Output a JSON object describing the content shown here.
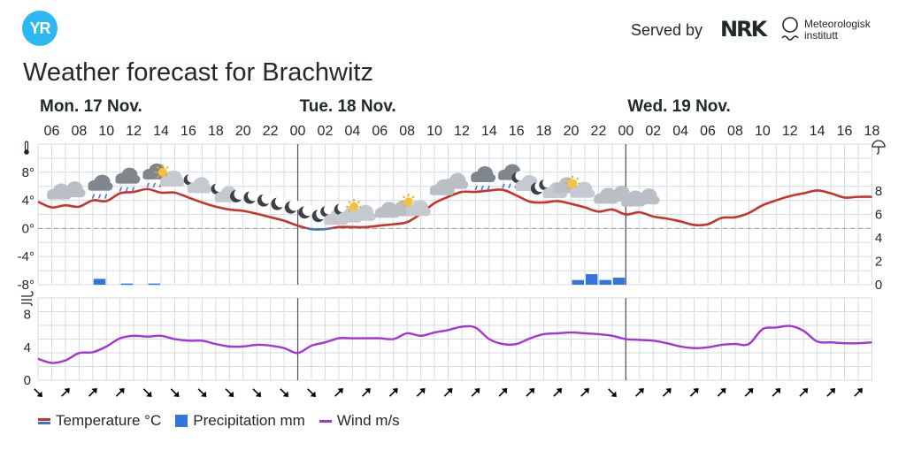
{
  "header": {
    "logo_text": "YR",
    "served_by": "Served by",
    "nrk_text": "NRK",
    "met_line1": "Meteorologisk",
    "met_line2": "institutt"
  },
  "title": "Weather forecast for Brachwitz",
  "colors": {
    "temperature_line": "#c8332c",
    "temperature_below_zero": "#3b78c4",
    "precipitation": "#3276dd",
    "wind_line": "#a633d6",
    "grid": "#d3dbe3",
    "brand": "#2db7f5"
  },
  "chart_data": {
    "type": "line",
    "days": [
      {
        "label": "Mon. 17 Nov.",
        "start_hour": 5
      },
      {
        "label": "Tue. 18 Nov.",
        "start_hour": 24
      },
      {
        "label": "Wed. 19 Nov.",
        "start_hour": 48
      }
    ],
    "hour_range": [
      5,
      66
    ],
    "hour_ticks": [
      "06",
      "08",
      "10",
      "12",
      "14",
      "16",
      "18",
      "20",
      "22",
      "00",
      "02",
      "04",
      "06",
      "08",
      "10",
      "12",
      "14",
      "16",
      "18",
      "20",
      "22",
      "00",
      "02",
      "04",
      "06",
      "08",
      "10",
      "12",
      "14",
      "16",
      "18"
    ],
    "temperature": {
      "unit": "°C",
      "y_range": [
        -8,
        12
      ],
      "tick_labels": [
        "8°",
        "4°",
        "0°",
        "-4°",
        "-8°"
      ],
      "tick_values": [
        8,
        4,
        0,
        -4,
        -8
      ],
      "values": [
        3.8,
        3.0,
        3.3,
        3.1,
        4.0,
        3.9,
        5.0,
        5.2,
        5.6,
        5.1,
        5.1,
        4.4,
        3.7,
        3.1,
        2.7,
        2.5,
        2.1,
        1.6,
        1.1,
        0.4,
        -0.1,
        -0.1,
        0.2,
        0.2,
        0.2,
        0.4,
        0.6,
        0.9,
        2.1,
        3.6,
        4.5,
        5.2,
        5.2,
        5.4,
        5.5,
        4.7,
        3.8,
        3.7,
        3.9,
        3.5,
        3.0,
        2.4,
        2.7,
        2.0,
        2.3,
        1.7,
        1.4,
        1.0,
        0.5,
        0.6,
        1.5,
        1.6,
        2.2,
        3.3,
        4.0,
        4.6,
        5.0,
        5.4,
        5.0,
        4.4,
        4.5,
        4.5
      ]
    },
    "precipitation": {
      "unit": "mm",
      "y_range": [
        0,
        12
      ],
      "tick_labels": [
        "8",
        "6",
        "4",
        "2",
        "0"
      ],
      "tick_values": [
        8,
        6,
        4,
        2,
        0
      ],
      "bars": [
        {
          "hour": 9,
          "value": 0.5
        },
        {
          "hour": 11,
          "value": 0.1
        },
        {
          "hour": 13,
          "value": 0.1
        },
        {
          "hour": 44,
          "value": 0.4
        },
        {
          "hour": 45,
          "value": 0.9
        },
        {
          "hour": 46,
          "value": 0.4
        },
        {
          "hour": 47,
          "value": 0.6
        }
      ]
    },
    "wind": {
      "unit": "m/s",
      "y_range": [
        0,
        10
      ],
      "tick_labels": [
        "8",
        "4",
        "0"
      ],
      "tick_values": [
        8,
        4,
        0
      ],
      "values": [
        2.6,
        2.1,
        2.4,
        3.3,
        3.4,
        4.1,
        5.1,
        5.4,
        5.3,
        5.4,
        5.0,
        4.8,
        4.8,
        4.4,
        4.1,
        4.1,
        4.3,
        4.2,
        3.9,
        3.3,
        4.2,
        4.6,
        5.1,
        5.1,
        5.1,
        5.1,
        5.0,
        5.7,
        5.4,
        5.8,
        6.1,
        6.5,
        6.4,
        5.0,
        4.4,
        4.4,
        5.1,
        5.6,
        5.7,
        5.8,
        5.7,
        5.6,
        5.4,
        5.0,
        4.9,
        4.8,
        4.5,
        4.1,
        3.9,
        4.0,
        4.3,
        4.4,
        4.4,
        6.2,
        6.4,
        6.6,
        6.0,
        4.7,
        4.6,
        4.5,
        4.5,
        4.6
      ]
    },
    "weather_symbols": [
      {
        "hour": 6,
        "icon": "cloud-icon"
      },
      {
        "hour": 7,
        "icon": "cloud-icon"
      },
      {
        "hour": 9,
        "icon": "rain-cloud-icon"
      },
      {
        "hour": 11,
        "icon": "rain-cloud-icon"
      },
      {
        "hour": 13,
        "icon": "rain-cloud-icon"
      },
      {
        "hour": 14,
        "icon": "sun-cloud-icon"
      },
      {
        "hour": 16,
        "icon": "moon-cloud-icon"
      },
      {
        "hour": 18,
        "icon": "moon-cloud-icon"
      },
      {
        "hour": 19,
        "icon": "moon-icon"
      },
      {
        "hour": 20,
        "icon": "moon-icon"
      },
      {
        "hour": 21,
        "icon": "moon-icon"
      },
      {
        "hour": 22,
        "icon": "moon-icon"
      },
      {
        "hour": 23,
        "icon": "moon-icon"
      },
      {
        "hour": 24,
        "icon": "moon-icon"
      },
      {
        "hour": 25,
        "icon": "moon-icon"
      },
      {
        "hour": 26,
        "icon": "moon-cloud-icon"
      },
      {
        "hour": 27,
        "icon": "moon-cloud-icon"
      },
      {
        "hour": 28,
        "icon": "sun-cloud-icon"
      },
      {
        "hour": 30,
        "icon": "cloud-icon"
      },
      {
        "hour": 31,
        "icon": "cloud-icon"
      },
      {
        "hour": 32,
        "icon": "sun-cloud-icon"
      },
      {
        "hour": 34,
        "icon": "cloud-icon"
      },
      {
        "hour": 35,
        "icon": "cloud-icon"
      },
      {
        "hour": 37,
        "icon": "rain-cloud-icon"
      },
      {
        "hour": 39,
        "icon": "rain-cloud-icon"
      },
      {
        "hour": 40,
        "icon": "moon-cloud-icon"
      },
      {
        "hour": 41,
        "icon": "moon-icon"
      },
      {
        "hour": 42,
        "icon": "moon-cloud-icon"
      },
      {
        "hour": 43,
        "icon": "cloud-icon"
      },
      {
        "hour": 44,
        "icon": "sun-cloud-icon"
      },
      {
        "hour": 46,
        "icon": "cloud-icon"
      },
      {
        "hour": 47,
        "icon": "cloud-icon"
      },
      {
        "hour": 48,
        "icon": "cloud-icon"
      },
      {
        "hour": 49,
        "icon": "cloud-icon"
      }
    ],
    "wind_directions_deg": [
      135,
      45,
      45,
      45,
      135,
      135,
      135,
      135,
      135,
      135,
      135,
      45,
      45,
      45,
      45,
      45,
      45,
      45,
      45,
      45,
      45,
      135,
      45,
      45,
      45,
      45,
      45,
      45,
      45,
      45,
      45
    ],
    "legend": [
      {
        "label": "Temperature °C",
        "kind": "temperature"
      },
      {
        "label": "Precipitation mm",
        "kind": "precipitation"
      },
      {
        "label": "Wind m/s",
        "kind": "wind"
      }
    ]
  }
}
